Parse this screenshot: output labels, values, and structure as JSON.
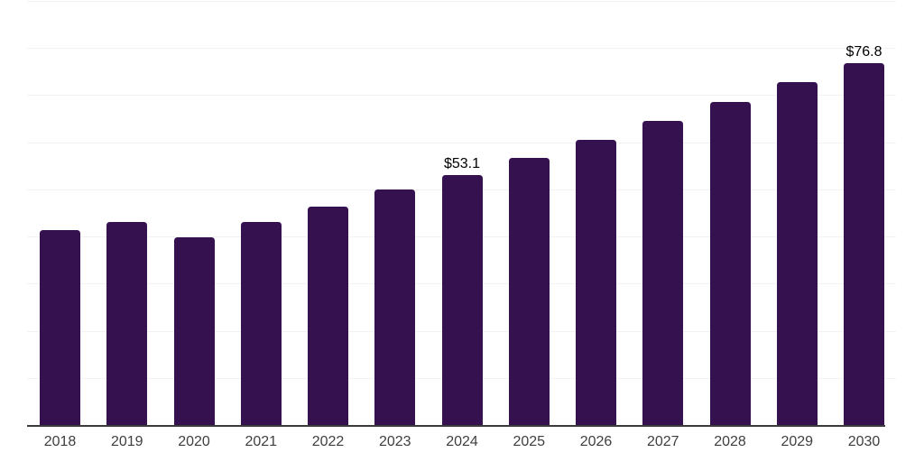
{
  "chart_data": {
    "type": "bar",
    "title": "",
    "categories": [
      "2018",
      "2019",
      "2020",
      "2021",
      "2022",
      "2023",
      "2024",
      "2025",
      "2026",
      "2027",
      "2028",
      "2029",
      "2030"
    ],
    "values": [
      41.3,
      43.1,
      39.9,
      43.0,
      46.3,
      49.9,
      53.1,
      56.7,
      60.6,
      64.6,
      68.6,
      72.7,
      76.8
    ],
    "value_labels": {
      "2024": "$53.1",
      "2030": "$76.8"
    },
    "xlabel": "",
    "ylabel": "",
    "ylim": [
      0,
      90
    ],
    "gridline_step": 10,
    "grid": true,
    "legend": false,
    "y_axis_tick_labels_visible": false,
    "colors": {
      "bar": "#36114F",
      "axis_line": "#3b3b3b",
      "gridline": "#f2f2f2",
      "tick_label": "#3f3f3f",
      "value_label": "#000000",
      "background": "#ffffff"
    }
  }
}
